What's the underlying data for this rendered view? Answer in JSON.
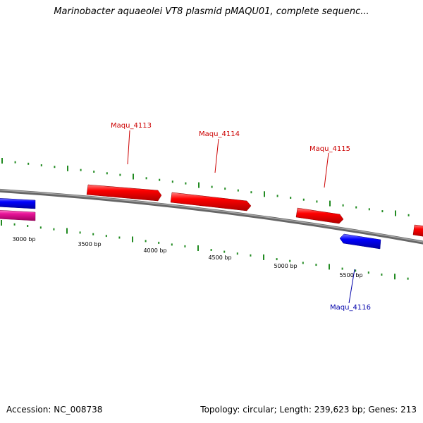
{
  "title": "Marinobacter aquaeolei VT8 plasmid pMAQU01, complete sequenc...",
  "footer": {
    "accession": "Accession: NC_008738",
    "summary": "Topology: circular; Length: 239,623 bp; Genes: 213"
  },
  "colors": {
    "forward_gene": "#ff0000",
    "reverse_gene": "#0000ff",
    "other_gene": "#e8149a",
    "backbone": "#808080",
    "tick": "#228b22",
    "forward_label": "#cc0000",
    "reverse_label": "#0000aa"
  },
  "ticks": [
    {
      "label": "3000 bp"
    },
    {
      "label": "3500 bp"
    },
    {
      "label": "4000 bp"
    },
    {
      "label": "4500 bp"
    },
    {
      "label": "5000 bp"
    },
    {
      "label": "5500 bp"
    }
  ],
  "genes": [
    {
      "name": "Maqu_4113",
      "strand": "forward"
    },
    {
      "name": "Maqu_4114",
      "strand": "forward"
    },
    {
      "name": "Maqu_4115",
      "strand": "forward"
    },
    {
      "name": "Maqu_4116",
      "strand": "reverse"
    }
  ]
}
